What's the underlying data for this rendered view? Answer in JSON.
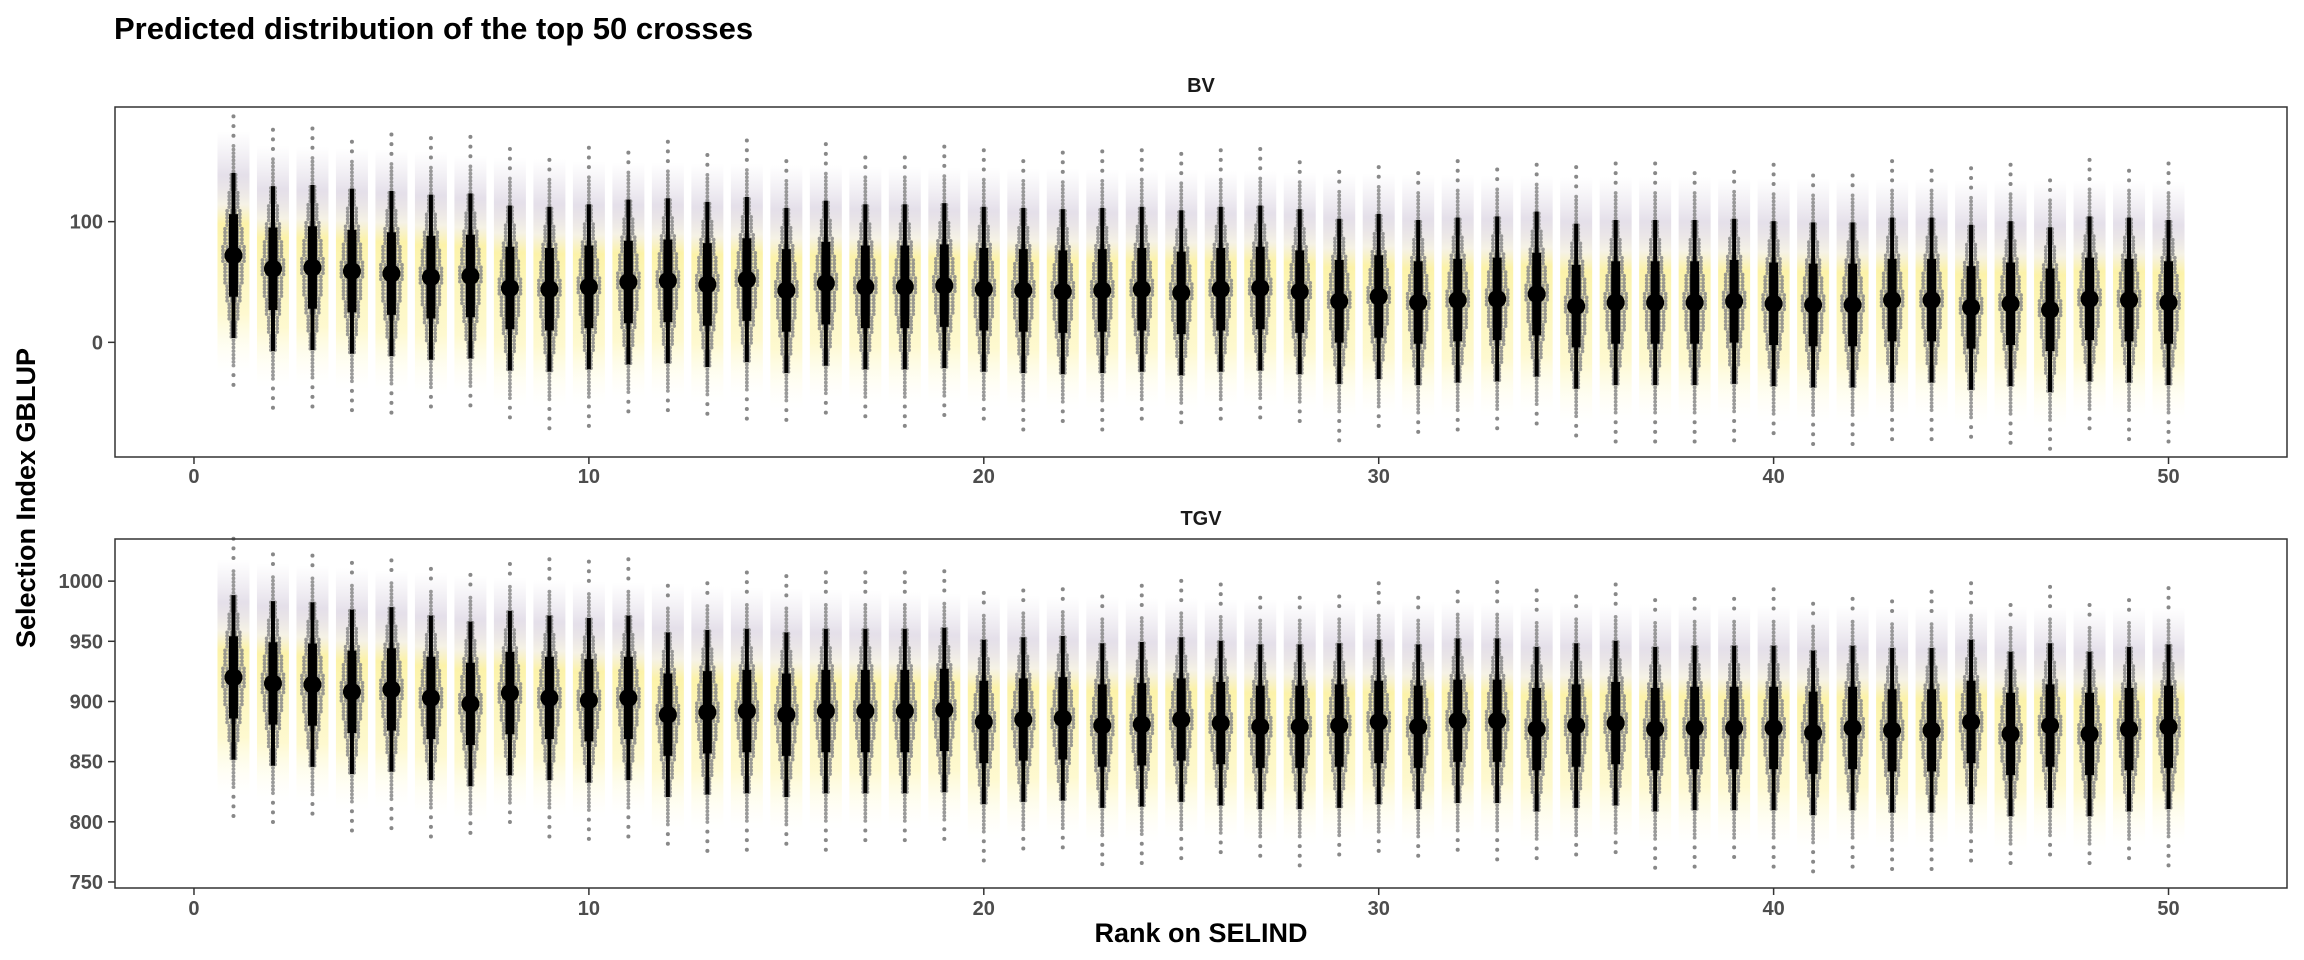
{
  "chart_data": {
    "type": "scatter",
    "title": "Predicted distribution of the top 50 crosses",
    "xlabel": "Rank on SELIND",
    "ylabel": "Selection Index GBLUP",
    "xlim": [
      -2,
      53
    ],
    "x_ticks": [
      0,
      10,
      20,
      30,
      40,
      50
    ],
    "grid": false,
    "legend": "none",
    "colors": {
      "points": "#888888",
      "interval": "#000000",
      "fill_low": "#fde725",
      "fill_high": "#440154"
    },
    "x": [
      1,
      2,
      3,
      4,
      5,
      6,
      7,
      8,
      9,
      10,
      11,
      12,
      13,
      14,
      15,
      16,
      17,
      18,
      19,
      20,
      21,
      22,
      23,
      24,
      25,
      26,
      27,
      28,
      29,
      30,
      31,
      32,
      33,
      34,
      35,
      36,
      37,
      38,
      39,
      40,
      41,
      42,
      43,
      44,
      45,
      46,
      47,
      48,
      49,
      50
    ],
    "panels": [
      {
        "name": "BV",
        "ylim": [
          -95,
          195
        ],
        "y_ticks": [
          0,
          100
        ],
        "medians": [
          72,
          61,
          62,
          59,
          57,
          54,
          55,
          45,
          44,
          46,
          50,
          51,
          48,
          52,
          43,
          49,
          46,
          46,
          47,
          44,
          43,
          42,
          43,
          44,
          41,
          44,
          45,
          42,
          34,
          38,
          33,
          35,
          36,
          40,
          30,
          33,
          33,
          33,
          34,
          32,
          31,
          31,
          35,
          35,
          29,
          32,
          27,
          36,
          35,
          33
        ],
        "spread": 38,
        "upper_bound": [
          130,
          118,
          117,
          116,
          115,
          113,
          110,
          108,
          107,
          105,
          104,
          104,
          103,
          103,
          102,
          102,
          101,
          101,
          100,
          100,
          99,
          99,
          98,
          98,
          98,
          97,
          97,
          96,
          95,
          95,
          94,
          94,
          93,
          93,
          92,
          92,
          92,
          92,
          91,
          91,
          91,
          90,
          90,
          90,
          89,
          89,
          89,
          89,
          89,
          88
        ]
      },
      {
        "name": "TGV",
        "ylim": [
          745,
          1035
        ],
        "y_ticks": [
          750,
          800,
          850,
          900,
          950,
          1000
        ],
        "medians": [
          920,
          915,
          914,
          908,
          910,
          903,
          898,
          907,
          903,
          901,
          903,
          889,
          891,
          892,
          889,
          892,
          892,
          892,
          893,
          883,
          885,
          886,
          880,
          881,
          885,
          882,
          879,
          879,
          880,
          883,
          879,
          884,
          884,
          877,
          880,
          882,
          877,
          878,
          878,
          878,
          874,
          878,
          876,
          876,
          883,
          873,
          880,
          873,
          877,
          879
        ],
        "spread": 38,
        "upper_bound": [
          973,
          970,
          968,
          966,
          964,
          962,
          960,
          958,
          956,
          955,
          954,
          953,
          951,
          950,
          949,
          948,
          947,
          946,
          945,
          944,
          943,
          942,
          942,
          941,
          941,
          940,
          940,
          939,
          939,
          938,
          938,
          938,
          937,
          937,
          937,
          936,
          936,
          936,
          935,
          935,
          935,
          935,
          934,
          934,
          934,
          934,
          933,
          933,
          933,
          933
        ]
      }
    ]
  }
}
